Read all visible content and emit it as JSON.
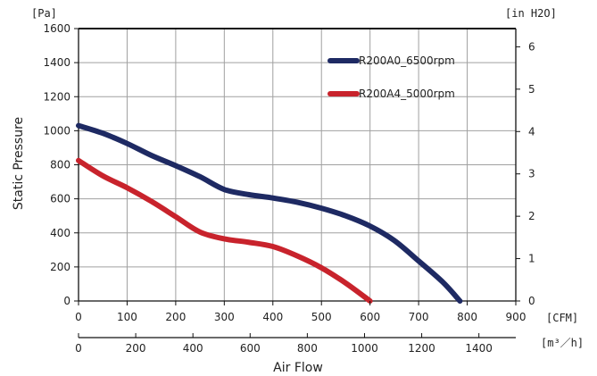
{
  "chart_data": {
    "type": "line",
    "xlabel": "Air Flow",
    "ylabel": "Static Pressure",
    "x_unit": "[CFM]",
    "x2_unit": "[m³／h]",
    "y_unit": "[Pa]",
    "y2_unit": "[in H2O]",
    "xlim": [
      0,
      900
    ],
    "ylim": [
      0,
      1600
    ],
    "x2lim": [
      0,
      1529
    ],
    "y2lim": [
      0,
      6.43
    ],
    "x_ticks": [
      0,
      100,
      200,
      300,
      400,
      500,
      600,
      700,
      800,
      900
    ],
    "x2_ticks": [
      0,
      200,
      400,
      600,
      800,
      1000,
      1200,
      1400
    ],
    "y_ticks": [
      0,
      200,
      400,
      600,
      800,
      1000,
      1200,
      1400,
      1600
    ],
    "y2_ticks": [
      0,
      1,
      2,
      3,
      4,
      5,
      6
    ],
    "grid": true,
    "legend_position": "top-right",
    "series": [
      {
        "name": "R200A0_6500rpm",
        "color": "#1e2a63",
        "x": [
          0,
          50,
          100,
          150,
          200,
          250,
          300,
          350,
          400,
          450,
          500,
          550,
          600,
          650,
          700,
          750,
          785
        ],
        "y": [
          1030,
          985,
          925,
          855,
          795,
          730,
          655,
          625,
          605,
          580,
          545,
          500,
          440,
          355,
          235,
          110,
          0
        ]
      },
      {
        "name": "R200A4_5000rpm",
        "color": "#c8232c",
        "x": [
          0,
          50,
          100,
          150,
          200,
          250,
          300,
          350,
          400,
          450,
          500,
          550,
          600
        ],
        "y": [
          825,
          735,
          665,
          585,
          495,
          405,
          365,
          345,
          320,
          265,
          195,
          105,
          0
        ]
      }
    ]
  }
}
